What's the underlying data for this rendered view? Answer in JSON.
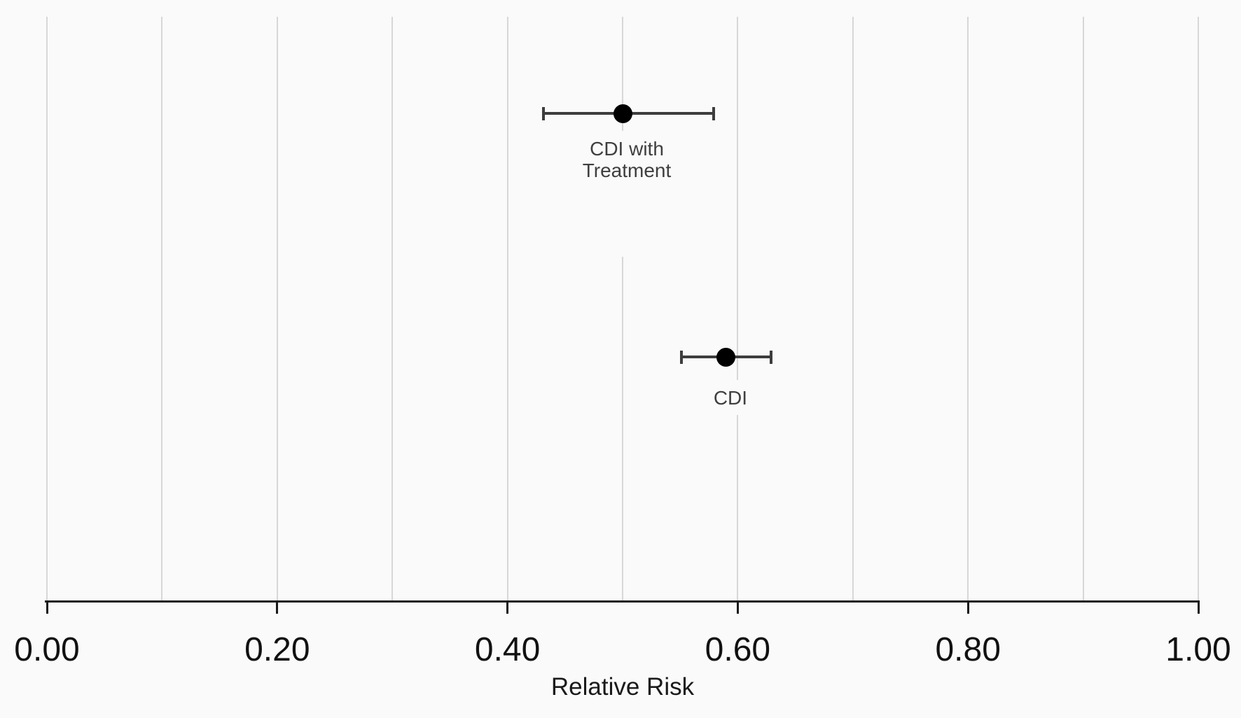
{
  "chart_data": {
    "type": "scatter",
    "subtype": "forest-plot-with-error-bars",
    "title": "",
    "xlabel": "Relative Risk",
    "ylabel": "",
    "xlim": [
      0.0,
      1.0
    ],
    "x_tick_values": [
      0.0,
      0.2,
      0.4,
      0.6,
      0.8,
      1.0
    ],
    "x_tick_labels": [
      "0.00",
      "0.20",
      "0.40",
      "0.60",
      "0.80",
      "1.00"
    ],
    "gridline_values": [
      0.0,
      0.1,
      0.2,
      0.3,
      0.4,
      0.5,
      0.6,
      0.7,
      0.8,
      0.9,
      1.0
    ],
    "grid": "vertical gridlines every 0.10, light gray, no horizontal gridlines",
    "legend": "none",
    "series": [
      {
        "label": "CDI with Treatment",
        "label_display": "CDI with\nTreatment",
        "relative_risk": 0.5,
        "ci_low": 0.43,
        "ci_high": 0.58
      },
      {
        "label": "CDI",
        "label_display": "CDI",
        "relative_risk": 0.59,
        "ci_low": 0.55,
        "ci_high": 0.63
      }
    ],
    "colors": {
      "dot": "#000000",
      "error_bar": "#3d3d3d",
      "gridline": "#d7d7d7",
      "axis": "#1a1a1a",
      "background": "#fafafa",
      "point_label_text": "#3f3f3f",
      "tick_label_text": "#111111"
    }
  }
}
